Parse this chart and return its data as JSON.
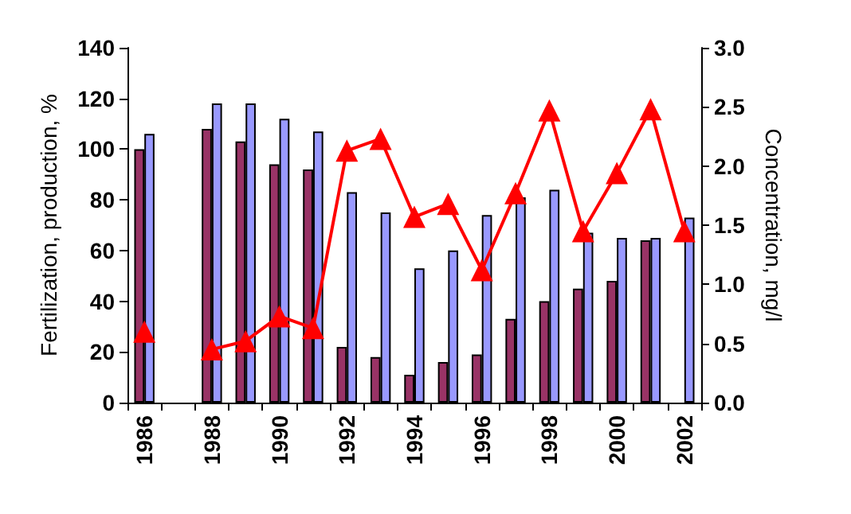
{
  "chart_data": {
    "type": "bar",
    "categories": [
      "1986",
      null,
      "1988",
      null,
      "1990",
      null,
      "1992",
      null,
      "1994",
      null,
      "1996",
      null,
      "1998",
      null,
      "2000",
      null,
      "2002"
    ],
    "series": [
      {
        "color": "#993366",
        "values": [
          100,
          null,
          108,
          103,
          94,
          92,
          22,
          18,
          11,
          16,
          19,
          33,
          40,
          45,
          48,
          64,
          null
        ]
      },
      {
        "color": "#9999ff",
        "values": [
          106,
          null,
          118,
          118,
          112,
          107,
          83,
          75,
          53,
          60,
          74,
          81,
          84,
          67,
          65,
          65,
          73
        ]
      },
      {
        "type": "line",
        "axis": "y2",
        "color": "#ff0000",
        "marker": "triangle",
        "values": [
          0.6,
          null,
          0.45,
          0.52,
          0.73,
          0.63,
          2.13,
          2.23,
          1.57,
          1.68,
          1.12,
          1.77,
          2.47,
          1.45,
          1.94,
          2.48,
          1.45
        ]
      }
    ],
    "ylabel": "Fertilization, production, %",
    "y2label": "Concentration, mg/l",
    "ylim": [
      0,
      140
    ],
    "yticks": [
      0,
      20,
      40,
      60,
      80,
      100,
      120,
      140
    ],
    "y2lim": [
      0,
      3
    ],
    "y2ticks": [
      {
        "value": 0,
        "label": "0.0"
      },
      {
        "value": 0.5,
        "label": "0.5"
      },
      {
        "value": 1,
        "label": "1.0"
      },
      {
        "value": 1.5,
        "label": "1.5"
      },
      {
        "value": 2,
        "label": "2.0"
      },
      {
        "value": 2.5,
        "label": "2.5"
      },
      {
        "value": 3,
        "label": "3.0"
      }
    ],
    "grid": false
  }
}
